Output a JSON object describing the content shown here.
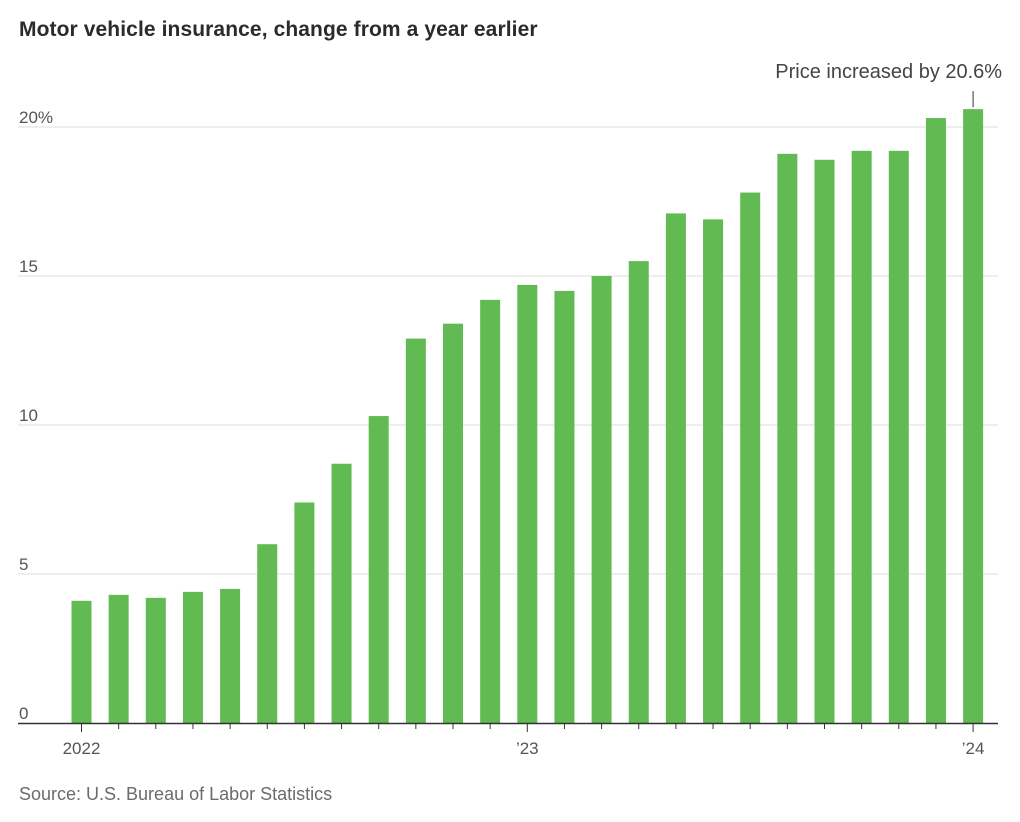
{
  "chart_title": "Motor vehicle insurance, change from a year earlier",
  "source": "Source: U.S. Bureau of Labor Statistics",
  "colors": {
    "bar": "#62ba53",
    "grid": "#dddddd",
    "axis": "#333333",
    "text": "#555555"
  },
  "chart_data": {
    "type": "bar",
    "title": "Motor vehicle insurance, change from a year earlier",
    "xlabel": "",
    "ylabel": "",
    "ylim": [
      0,
      20.6
    ],
    "grid": true,
    "y_ticks": [
      0,
      5,
      10,
      15,
      20
    ],
    "y_tick_labels": [
      "0",
      "5",
      "10",
      "15",
      "20%"
    ],
    "x_tick_labels": [
      {
        "index": 0,
        "label": "2022"
      },
      {
        "index": 12,
        "label": "’23"
      },
      {
        "index": 24,
        "label": "’24"
      }
    ],
    "categories": [
      "2022-01",
      "2022-02",
      "2022-03",
      "2022-04",
      "2022-05",
      "2022-06",
      "2022-07",
      "2022-08",
      "2022-09",
      "2022-10",
      "2022-11",
      "2022-12",
      "2023-01",
      "2023-02",
      "2023-03",
      "2023-04",
      "2023-05",
      "2023-06",
      "2023-07",
      "2023-08",
      "2023-09",
      "2023-10",
      "2023-11",
      "2023-12",
      "2024-01"
    ],
    "values": [
      4.1,
      4.3,
      4.2,
      4.4,
      4.5,
      6.0,
      7.4,
      8.7,
      10.3,
      12.9,
      13.4,
      14.2,
      14.7,
      14.5,
      15.0,
      15.5,
      17.1,
      16.9,
      17.8,
      19.1,
      18.9,
      19.2,
      19.2,
      20.3,
      20.6
    ],
    "annotations": [
      {
        "index": 24,
        "text": "Price increased by 20.6%"
      }
    ]
  }
}
